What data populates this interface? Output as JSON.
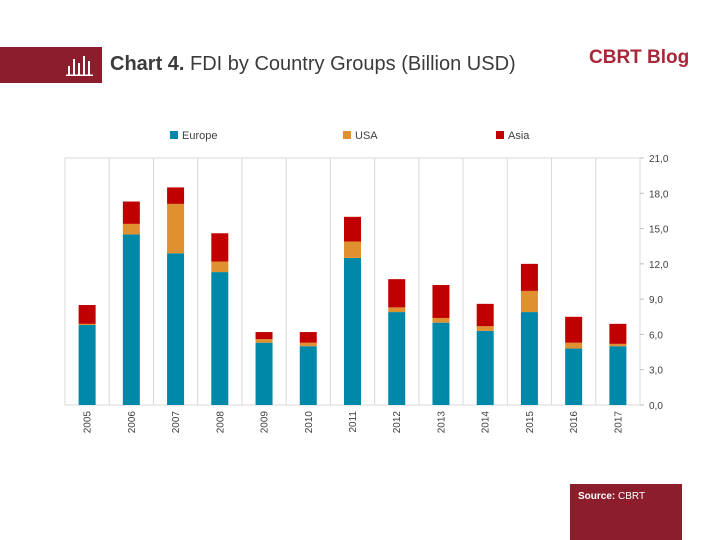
{
  "header": {
    "title_bold": "Chart 4.",
    "title_rest": " FDI by Country Groups (Billion USD)",
    "brand": "CBRT Blog"
  },
  "footer": {
    "source_label": "Source:",
    "source_value": " CBRT"
  },
  "colors": {
    "brand": "#8b1d2c",
    "europe": "#0088a8",
    "usa": "#e0912f",
    "asia": "#c00000"
  },
  "chart_data": {
    "type": "bar",
    "stacked": true,
    "categories": [
      "2005",
      "2006",
      "2007",
      "2008",
      "2009",
      "2010",
      "2011",
      "2012",
      "2013",
      "2014",
      "2015",
      "2016",
      "2017"
    ],
    "series": [
      {
        "name": "Europe",
        "color": "#0088a8",
        "values": [
          6.8,
          14.5,
          12.9,
          11.3,
          5.3,
          5.0,
          12.5,
          7.9,
          7.0,
          6.3,
          7.9,
          4.8,
          5.0
        ]
      },
      {
        "name": "USA",
        "color": "#e0912f",
        "values": [
          0.1,
          0.9,
          4.2,
          0.9,
          0.3,
          0.3,
          1.4,
          0.4,
          0.4,
          0.4,
          1.8,
          0.5,
          0.2
        ]
      },
      {
        "name": "Asia",
        "color": "#c00000",
        "values": [
          1.6,
          1.9,
          1.4,
          2.4,
          0.6,
          0.9,
          2.1,
          2.4,
          2.8,
          1.9,
          2.3,
          2.2,
          1.7
        ]
      }
    ],
    "y_axis": {
      "position": "right",
      "min": 0,
      "max": 21,
      "step": 3,
      "tick_labels": [
        "0,0",
        "3,0",
        "6,0",
        "9,0",
        "12,0",
        "15,0",
        "18,0",
        "21,0"
      ]
    },
    "grid": "vertical",
    "legend_position": "top",
    "xlabel": "",
    "ylabel": ""
  }
}
